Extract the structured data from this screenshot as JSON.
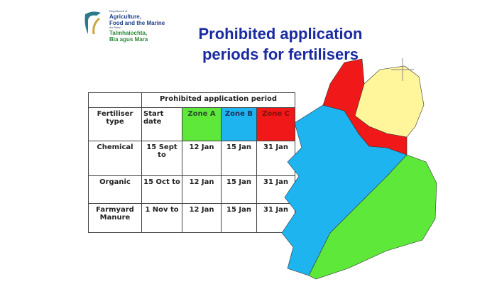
{
  "logo": {
    "line1": "Department of",
    "line2": "Agriculture,",
    "line3": "Food and the Marine",
    "line4": "An Roinn",
    "line5": "Talmhaíochta,",
    "line6": "Bia agus Mara"
  },
  "title": {
    "line1": "Prohibited application",
    "line2": "periods for fertilisers"
  },
  "table": {
    "group_header": "Prohibited application period",
    "headers": {
      "type": "Fertiliser type",
      "start": "Start date",
      "zone_a": "Zone A",
      "zone_b": "Zone B",
      "zone_c": "Zone C"
    },
    "rows": [
      {
        "type": "Chemical",
        "start": "15 Sept to",
        "a": "12 Jan",
        "b": "15 Jan",
        "c": "31 Jan"
      },
      {
        "type": "Organic",
        "start": "15 Oct to",
        "a": "12 Jan",
        "b": "15 Jan",
        "c": "31 Jan"
      },
      {
        "type": "Farmyard Manure",
        "start": "1 Nov to",
        "a": "12 Jan",
        "b": "15 Jan",
        "c": "31 Jan"
      }
    ]
  },
  "colors": {
    "zone_a": "#5ee83a",
    "zone_b": "#1eb4f0",
    "zone_c": "#f01818",
    "northern_ireland": "#fff59a",
    "title": "#1a2aa0"
  }
}
